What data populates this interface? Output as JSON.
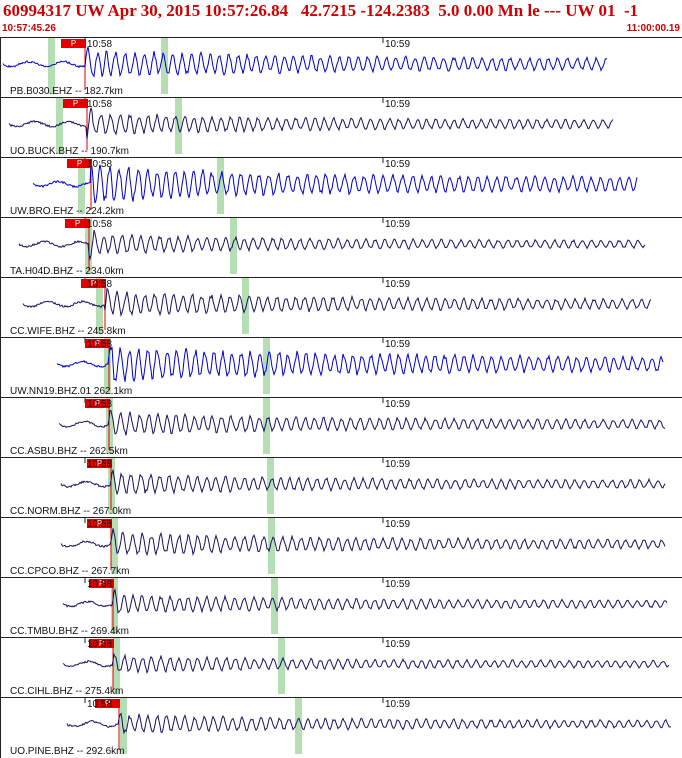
{
  "header": {
    "title": "60994317 UW Apr 30, 2015 10:57:26.84   42.7215 -124.2383  5.0 0.00 Mn le --- UW 01  -1",
    "start_time": "10:57:45.26",
    "end_time": "11:00:00.19"
  },
  "colors": {
    "header_text": "#cc0000",
    "trace_blue": "#0000cc",
    "trace_dark": "#1a1060",
    "pick_red": "#e00000",
    "band_green": "#a8d8a8"
  },
  "pick_label": "P",
  "channels": [
    {
      "station": "PB.B030.EHZ -- 182.7km",
      "tick_label_1": "10:58",
      "tick_label_2": "10:59",
      "color": "blue"
    },
    {
      "station": "UO.BUCK.BHZ -- 190.7km",
      "tick_label_1": "10:58",
      "tick_label_2": "10:59",
      "color": "dark"
    },
    {
      "station": "UW.BRO.EHZ -- 224.2km",
      "tick_label_1": "10:58",
      "tick_label_2": "10:59",
      "color": "blue"
    },
    {
      "station": "TA.H04D.BHZ -- 234.0km",
      "tick_label_1": "10:58",
      "tick_label_2": "10:59",
      "color": "dark"
    },
    {
      "station": "CC.WIFE.BHZ -- 245.8km",
      "tick_label_1": "10:58",
      "tick_label_2": "10:59",
      "color": "dark"
    },
    {
      "station": "UW.NN19.BHZ.01 262.1km",
      "tick_label_1": "10:58",
      "tick_label_2": "10:59",
      "color": "blue"
    },
    {
      "station": "CC.ASBU.BHZ -- 262.5km",
      "tick_label_1": "10:58",
      "tick_label_2": "10:59",
      "color": "dark"
    },
    {
      "station": "CC.NORM.BHZ -- 267.0km",
      "tick_label_1": "10:58",
      "tick_label_2": "10:59",
      "color": "dark"
    },
    {
      "station": "CC.CPCO.BHZ -- 267.7km",
      "tick_label_1": "10:58",
      "tick_label_2": "10:59",
      "color": "dark"
    },
    {
      "station": "CC.TMBU.BHZ -- 269.4km",
      "tick_label_1": "10:58",
      "tick_label_2": "10:59",
      "color": "dark"
    },
    {
      "station": "CC.CIHL.BHZ -- 275.4km",
      "tick_label_1": "10:58",
      "tick_label_2": "10:59",
      "color": "dark"
    },
    {
      "station": "UO.PINE.BHZ -- 292.6km",
      "tick_label_1": "10:58",
      "tick_label_2": "10:59",
      "color": "dark"
    }
  ]
}
